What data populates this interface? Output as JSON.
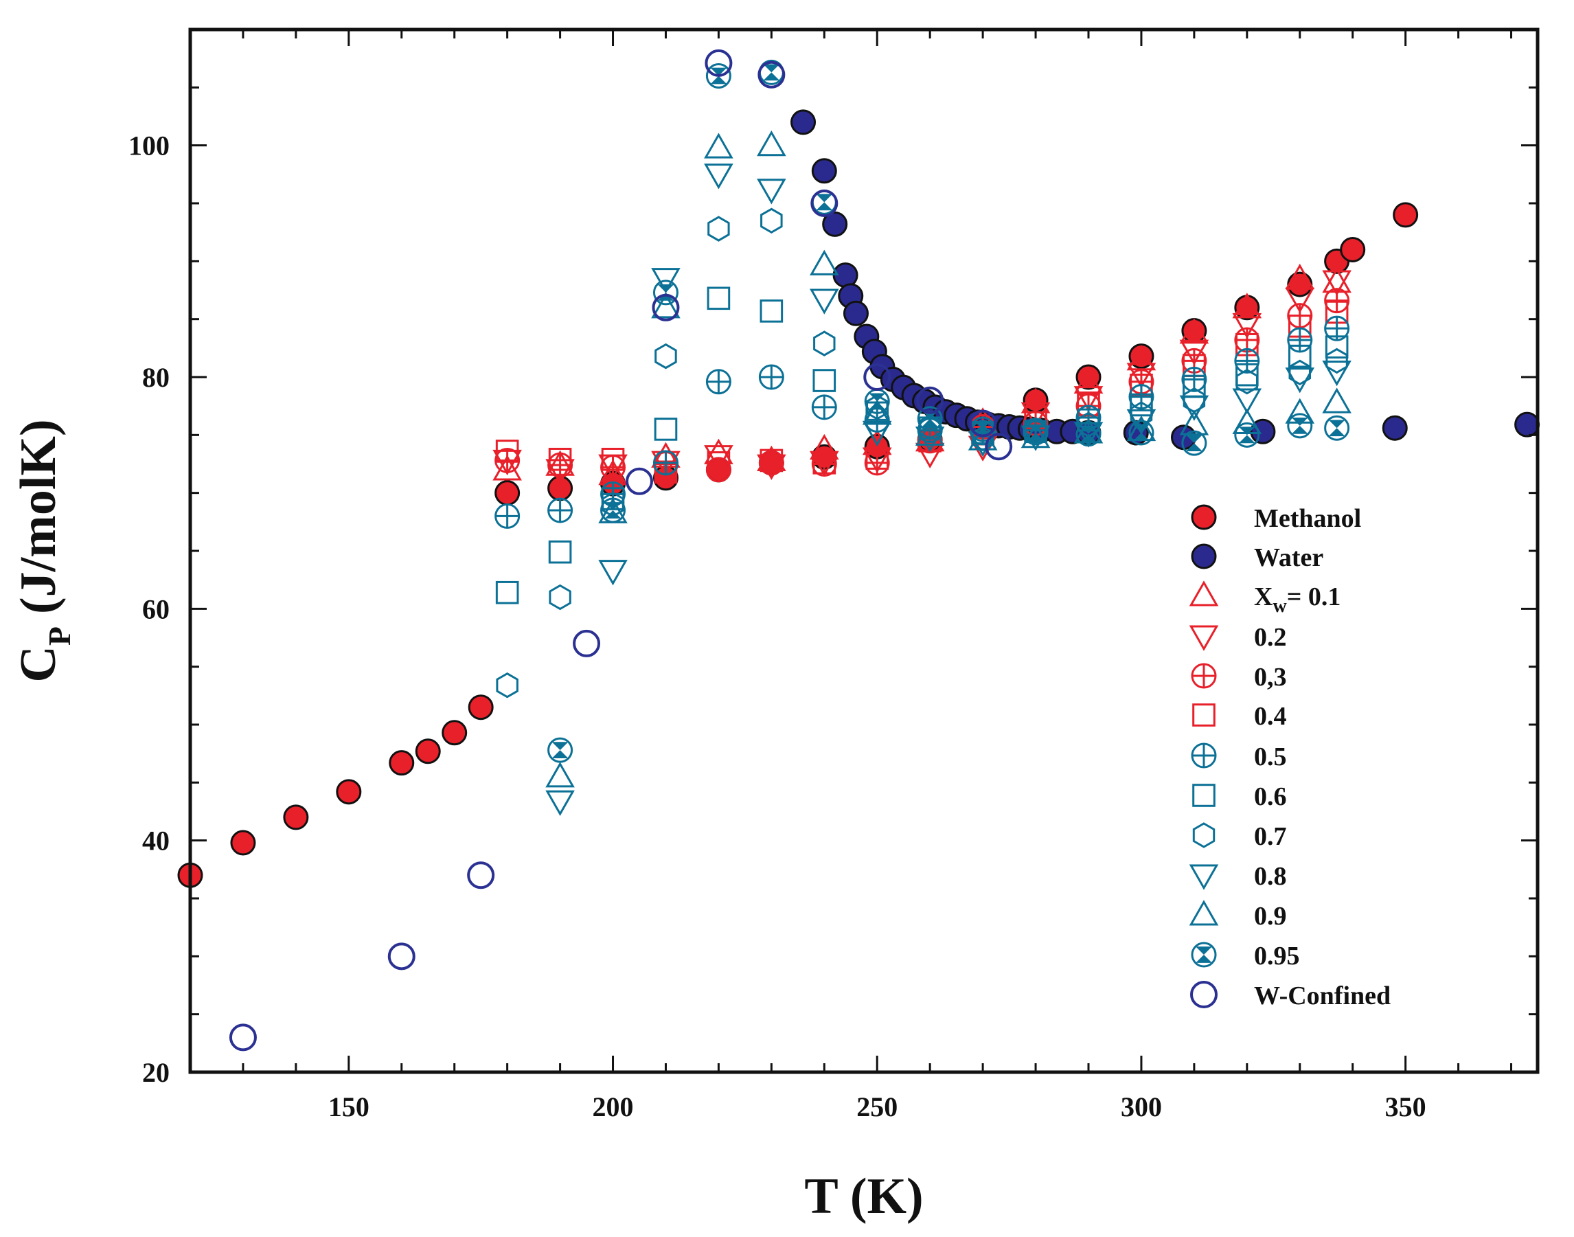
{
  "chart_data": {
    "type": "scatter",
    "title": "",
    "xlabel": "T (K)",
    "ylabel_main": "C",
    "ylabel_sub": "P",
    "ylabel_units": "(J/molK)",
    "xlim": [
      120,
      375
    ],
    "ylim": [
      20,
      110
    ],
    "xticks": [
      150,
      200,
      250,
      300,
      350
    ],
    "yticks": [
      20,
      40,
      60,
      80,
      100
    ],
    "x_minor_step": 10,
    "y_minor_step": 5,
    "grid": false,
    "legend_position": "right",
    "colors": {
      "red": "#e8202a",
      "teal": "#0c7196",
      "navy": "#2a2a8e",
      "blue_open": "#2b3192",
      "frame": "#111111"
    },
    "series": [
      {
        "name": "Methanol",
        "marker": "filled-circle",
        "color": "#e8202a",
        "points": [
          [
            120,
            37
          ],
          [
            130,
            39.8
          ],
          [
            140,
            42
          ],
          [
            150,
            44.2
          ],
          [
            160,
            46.7
          ],
          [
            165,
            47.7
          ],
          [
            170,
            49.3
          ],
          [
            175,
            51.5
          ],
          [
            180,
            70
          ],
          [
            190,
            70.4
          ],
          [
            200,
            70.8
          ],
          [
            210,
            71.3
          ],
          [
            220,
            72
          ],
          [
            230,
            72.6
          ],
          [
            240,
            73.1
          ],
          [
            250,
            74
          ],
          [
            260,
            74.6
          ],
          [
            270,
            75.8
          ],
          [
            280,
            78
          ],
          [
            290,
            80
          ],
          [
            300,
            81.8
          ],
          [
            310,
            84
          ],
          [
            320,
            86
          ],
          [
            330,
            88
          ],
          [
            337,
            90
          ],
          [
            340,
            91
          ],
          [
            350,
            94
          ]
        ]
      },
      {
        "name": "Water",
        "marker": "filled-circle",
        "color": "#2a2a8e",
        "points": [
          [
            236,
            102
          ],
          [
            240,
            97.8
          ],
          [
            242,
            93.2
          ],
          [
            244,
            88.8
          ],
          [
            245,
            87
          ],
          [
            246,
            85.5
          ],
          [
            248,
            83.5
          ],
          [
            249.5,
            82.2
          ],
          [
            251,
            80.9
          ],
          [
            253,
            79.8
          ],
          [
            255,
            79.1
          ],
          [
            257,
            78.4
          ],
          [
            259,
            77.9
          ],
          [
            261,
            77.4
          ],
          [
            263,
            77
          ],
          [
            265,
            76.7
          ],
          [
            267,
            76.4
          ],
          [
            269,
            76.1
          ],
          [
            271,
            75.9
          ],
          [
            273,
            75.8
          ],
          [
            275,
            75.7
          ],
          [
            277,
            75.6
          ],
          [
            279,
            75.5
          ],
          [
            281,
            75.4
          ],
          [
            284,
            75.3
          ],
          [
            287,
            75.3
          ],
          [
            290,
            75.2
          ],
          [
            299,
            75.2
          ],
          [
            308,
            74.8
          ],
          [
            323,
            75.3
          ],
          [
            348,
            75.6
          ],
          [
            373,
            75.9
          ]
        ]
      },
      {
        "name": "0.1",
        "marker": "triangle-up",
        "color": "#e8202a",
        "points": [
          [
            180,
            72
          ],
          [
            190,
            72.4
          ],
          [
            200,
            71.6
          ],
          [
            210,
            73.1
          ],
          [
            220,
            73.4
          ],
          [
            230,
            72.8
          ],
          [
            240,
            73.8
          ],
          [
            250,
            74.2
          ],
          [
            260,
            74.5
          ],
          [
            270,
            76.1
          ],
          [
            280,
            77.8
          ],
          [
            290,
            79.5
          ],
          [
            300,
            81.5
          ],
          [
            310,
            83.8
          ],
          [
            320,
            86
          ],
          [
            330,
            88.5
          ],
          [
            337,
            88.2
          ]
        ]
      },
      {
        "name": "0.2",
        "marker": "triangle-down",
        "color": "#e8202a",
        "points": [
          [
            180,
            72.8
          ],
          [
            190,
            72
          ],
          [
            200,
            72.4
          ],
          [
            210,
            72.7
          ],
          [
            220,
            73.2
          ],
          [
            230,
            72.4
          ],
          [
            240,
            72.7
          ],
          [
            250,
            73
          ],
          [
            260,
            73.4
          ],
          [
            270,
            74
          ],
          [
            280,
            76.9
          ],
          [
            290,
            78.3
          ],
          [
            300,
            80.3
          ],
          [
            310,
            82.3
          ],
          [
            320,
            84.6
          ],
          [
            330,
            86.8
          ],
          [
            337,
            88.3
          ]
        ]
      },
      {
        "name": "0,3",
        "marker": "circle-plus",
        "color": "#e8202a",
        "points": [
          [
            180,
            72.8
          ],
          [
            190,
            72.4
          ],
          [
            200,
            72.2
          ],
          [
            210,
            72.5
          ],
          [
            220,
            72
          ],
          [
            230,
            72.6
          ],
          [
            240,
            72.5
          ],
          [
            250,
            72.6
          ],
          [
            260,
            74.5
          ],
          [
            270,
            75.7
          ],
          [
            280,
            76
          ],
          [
            290,
            77.5
          ],
          [
            300,
            79.6
          ],
          [
            310,
            81.4
          ],
          [
            320,
            83.2
          ],
          [
            330,
            85.3
          ],
          [
            337,
            86.6
          ]
        ]
      },
      {
        "name": "0.4",
        "marker": "square",
        "color": "#e8202a",
        "points": [
          [
            180,
            73.6
          ],
          [
            190,
            72.9
          ],
          [
            200,
            72.9
          ],
          [
            210,
            71.8
          ],
          [
            220,
            72.6
          ],
          [
            230,
            72.8
          ],
          [
            240,
            72.6
          ],
          [
            250,
            73
          ],
          [
            260,
            74.5
          ],
          [
            270,
            75.1
          ],
          [
            280,
            76.5
          ],
          [
            290,
            77.6
          ],
          [
            300,
            79.3
          ],
          [
            310,
            81
          ],
          [
            320,
            82.8
          ],
          [
            330,
            84.4
          ],
          [
            337,
            85.6
          ]
        ]
      },
      {
        "name": "0.5",
        "marker": "circle-plus",
        "color": "#0c7196",
        "points": [
          [
            180,
            68
          ],
          [
            190,
            68.5
          ],
          [
            200,
            69.9
          ],
          [
            210,
            72.6
          ],
          [
            220,
            79.6
          ],
          [
            230,
            80
          ],
          [
            240,
            77.4
          ],
          [
            250,
            76.3
          ],
          [
            260,
            75.4
          ],
          [
            270,
            75.2
          ],
          [
            280,
            75.4
          ],
          [
            290,
            76.5
          ],
          [
            300,
            78.3
          ],
          [
            310,
            79.8
          ],
          [
            320,
            81.4
          ],
          [
            330,
            83.2
          ],
          [
            337,
            84.2
          ]
        ]
      },
      {
        "name": "0.6",
        "marker": "square",
        "color": "#0c7196",
        "points": [
          [
            180,
            61.4
          ],
          [
            190,
            64.9
          ],
          [
            200,
            69.5
          ],
          [
            210,
            75.5
          ],
          [
            220,
            86.8
          ],
          [
            230,
            85.7
          ],
          [
            240,
            79.7
          ],
          [
            250,
            76.9
          ],
          [
            260,
            75.6
          ],
          [
            270,
            75.2
          ],
          [
            280,
            75.3
          ],
          [
            290,
            76.3
          ],
          [
            300,
            77.6
          ],
          [
            310,
            79.2
          ],
          [
            320,
            80.2
          ],
          [
            330,
            81.8
          ],
          [
            337,
            82.6
          ]
        ]
      },
      {
        "name": "0.7",
        "marker": "hexagon",
        "color": "#0c7196",
        "points": [
          [
            180,
            53.4
          ],
          [
            190,
            61
          ],
          [
            200,
            69
          ],
          [
            210,
            81.8
          ],
          [
            220,
            92.8
          ],
          [
            230,
            93.5
          ],
          [
            240,
            82.9
          ],
          [
            250,
            77.4
          ],
          [
            260,
            75.7
          ],
          [
            270,
            74.7
          ],
          [
            280,
            75.3
          ],
          [
            290,
            75.9
          ],
          [
            300,
            76.8
          ],
          [
            310,
            78
          ],
          [
            320,
            79.6
          ],
          [
            330,
            80.4
          ],
          [
            337,
            81.4
          ]
        ]
      },
      {
        "name": "0.8",
        "marker": "triangle-down",
        "color": "#0c7196",
        "points": [
          [
            190,
            43.4
          ],
          [
            200,
            63.3
          ],
          [
            210,
            88.5
          ],
          [
            220,
            97.5
          ],
          [
            230,
            96.2
          ],
          [
            240,
            86.7
          ],
          [
            250,
            75.3
          ],
          [
            260,
            74.8
          ],
          [
            270,
            74.4
          ],
          [
            280,
            74.9
          ],
          [
            290,
            75.2
          ],
          [
            300,
            76.3
          ],
          [
            310,
            77.5
          ],
          [
            320,
            78.1
          ],
          [
            330,
            79.9
          ],
          [
            337,
            80.5
          ]
        ]
      },
      {
        "name": "0.9",
        "marker": "triangle-up",
        "color": "#0c7196",
        "points": [
          [
            190,
            45.5
          ],
          [
            200,
            68.3
          ],
          [
            210,
            86
          ],
          [
            220,
            99.8
          ],
          [
            230,
            100
          ],
          [
            240,
            89.7
          ],
          [
            250,
            76.8
          ],
          [
            260,
            75
          ],
          [
            270,
            74.6
          ],
          [
            280,
            74.8
          ],
          [
            290,
            75.2
          ],
          [
            300,
            75.4
          ],
          [
            310,
            75.9
          ],
          [
            320,
            76
          ],
          [
            330,
            76.9
          ],
          [
            337,
            77.8
          ]
        ]
      },
      {
        "name": "0.95",
        "marker": "circle-x",
        "color": "#0c7196",
        "points": [
          [
            190,
            47.8
          ],
          [
            200,
            68.5
          ],
          [
            210,
            87.3
          ],
          [
            220,
            106
          ],
          [
            230,
            106.3
          ],
          [
            240,
            95.1
          ],
          [
            250,
            77.9
          ],
          [
            260,
            76.4
          ],
          [
            270,
            75.5
          ],
          [
            280,
            75.2
          ],
          [
            290,
            75.1
          ],
          [
            300,
            75.2
          ],
          [
            310,
            74.3
          ],
          [
            320,
            75
          ],
          [
            330,
            75.8
          ],
          [
            337,
            75.6
          ]
        ]
      },
      {
        "name": "W-Confined",
        "marker": "open-circle",
        "color": "#2b3192",
        "points": [
          [
            130,
            23
          ],
          [
            160,
            30
          ],
          [
            175,
            37
          ],
          [
            195,
            57
          ],
          [
            205,
            71
          ],
          [
            210,
            86
          ],
          [
            220,
            107.1
          ],
          [
            230,
            106.1
          ],
          [
            240,
            95
          ],
          [
            250,
            80
          ],
          [
            260,
            78
          ],
          [
            270,
            76
          ],
          [
            273,
            74
          ]
        ]
      }
    ],
    "legend": {
      "entries": [
        {
          "label": "Methanol",
          "marker": "filled-circle",
          "color": "#e8202a"
        },
        {
          "label": "Water",
          "marker": "filled-circle",
          "color": "#2a2a8e"
        },
        {
          "label": "X",
          "label_sub": "w",
          "label_rest": "= 0.1",
          "marker": "triangle-up",
          "color": "#e8202a"
        },
        {
          "label": "0.2",
          "marker": "triangle-down",
          "color": "#e8202a"
        },
        {
          "label": "0,3",
          "marker": "circle-plus",
          "color": "#e8202a"
        },
        {
          "label": "0.4",
          "marker": "square",
          "color": "#e8202a"
        },
        {
          "label": "0.5",
          "marker": "circle-plus",
          "color": "#0c7196"
        },
        {
          "label": "0.6",
          "marker": "square",
          "color": "#0c7196"
        },
        {
          "label": "0.7",
          "marker": "hexagon",
          "color": "#0c7196"
        },
        {
          "label": "0.8",
          "marker": "triangle-down",
          "color": "#0c7196"
        },
        {
          "label": "0.9",
          "marker": "triangle-up",
          "color": "#0c7196"
        },
        {
          "label": "0.95",
          "marker": "circle-x",
          "color": "#0c7196"
        },
        {
          "label": "W-Confined",
          "marker": "open-circle",
          "color": "#2b3192"
        }
      ]
    }
  }
}
